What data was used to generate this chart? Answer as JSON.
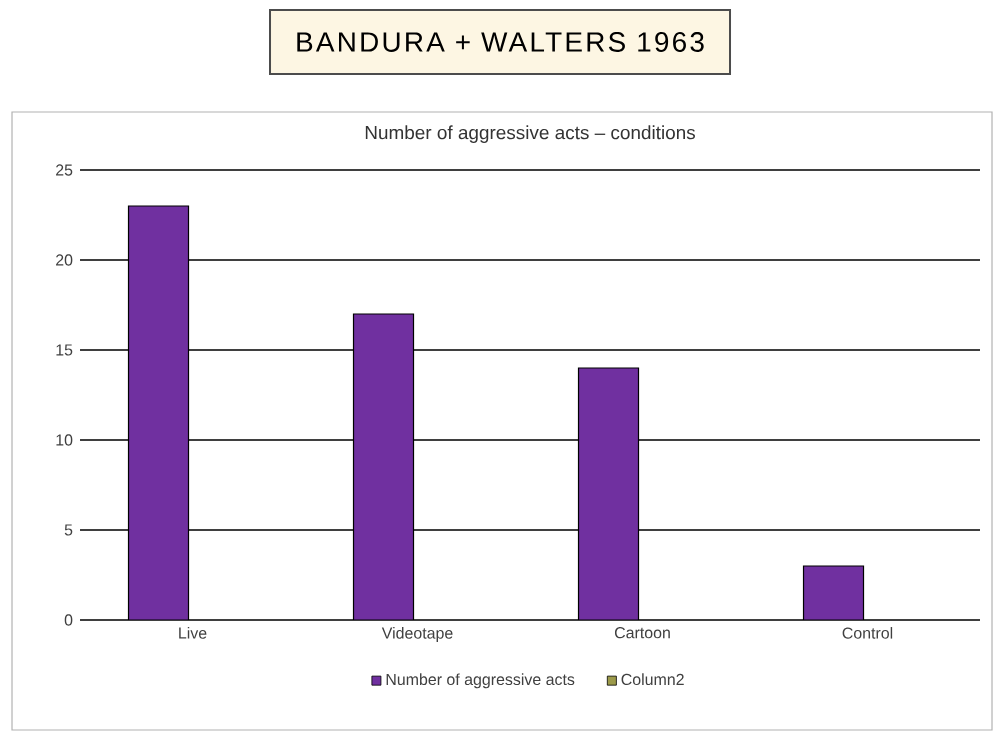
{
  "chart_data": {
    "type": "bar",
    "title": "BANDURA + WALTERS 1963",
    "subtitle": "Number of aggressive acts – conditions",
    "categories": [
      "Live",
      "Videotape",
      "Cartoon",
      "Control"
    ],
    "series": [
      {
        "name": "Number of aggressive acts",
        "color": "#7030a0",
        "values": [
          23,
          17,
          14,
          3
        ]
      },
      {
        "name": "Column2",
        "color": "#9c9a4a",
        "values": [
          null,
          null,
          null,
          null
        ]
      }
    ],
    "ylim": [
      0,
      25
    ],
    "yticks": [
      0,
      5,
      10,
      15,
      20,
      25
    ],
    "grid": "y",
    "legend": "bottom"
  }
}
